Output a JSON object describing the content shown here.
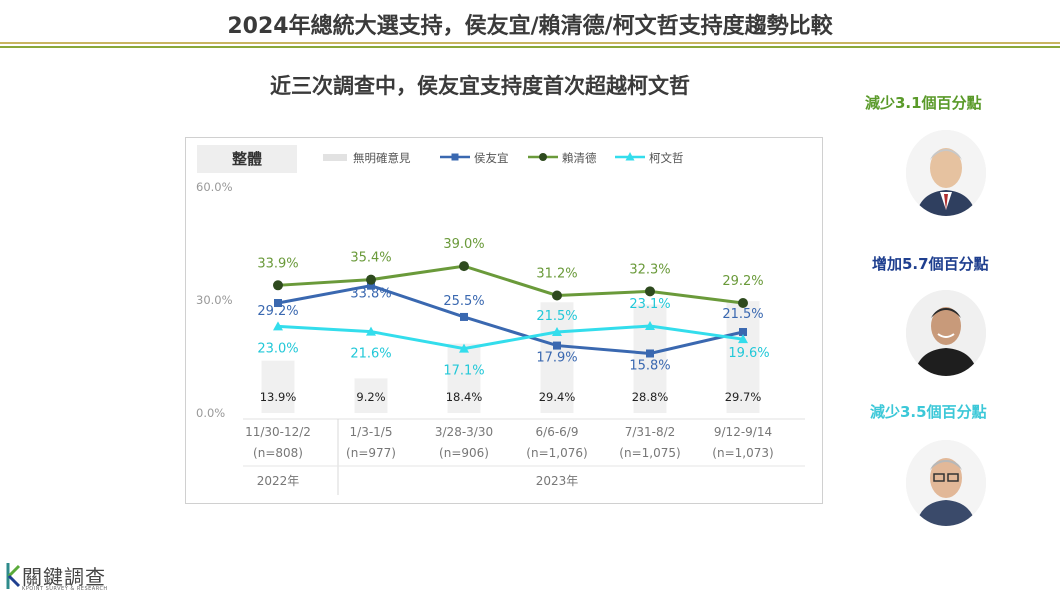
{
  "page": {
    "title": "2024年總統大選支持，侯友宜/賴清德/柯文哲支持度趨勢比較",
    "subtitle": "近三次調查中，侯友宜支持度首次超越柯文哲"
  },
  "side_notes": [
    {
      "text": "減少3.1個百分點",
      "color": "#5a9a2a"
    },
    {
      "text": "增加5.7個百分點",
      "color": "#1f3f8f"
    },
    {
      "text": "減少3.5個百分點",
      "color": "#3cc8d8"
    }
  ],
  "logo": {
    "name": "關鍵調查",
    "sub": "KPOINT SURVEY & RESEARCH"
  },
  "chart_data": {
    "type": "line",
    "panel_label": "整體",
    "categories": [
      "11/30-12/2",
      "1/3-1/5",
      "3/28-3/30",
      "6/6-6/9",
      "7/31-8/2",
      "9/12-9/14"
    ],
    "sample_sizes": [
      "(n=808)",
      "(n=977)",
      "(n=906)",
      "(n=1,076)",
      "(n=1,075)",
      "(n=1,073)"
    ],
    "years": [
      {
        "label": "2022年",
        "span": [
          0,
          0
        ]
      },
      {
        "label": "2023年",
        "span": [
          1,
          5
        ]
      }
    ],
    "ylim": [
      0,
      60
    ],
    "yticks": [
      "0.0%",
      "30.0%",
      "60.0%"
    ],
    "legend_position": "top",
    "series": [
      {
        "name": "無明確意見",
        "kind": "bar",
        "color": "#f0f0f0",
        "values": [
          13.9,
          9.2,
          18.4,
          29.4,
          28.8,
          29.7
        ],
        "labels": [
          "13.9%",
          "9.2%",
          "18.4%",
          "29.4%",
          "28.8%",
          "29.7%"
        ]
      },
      {
        "name": "侯友宜",
        "kind": "line",
        "marker": "square",
        "color": "#3a68b0",
        "values": [
          29.2,
          33.8,
          25.5,
          17.9,
          15.8,
          21.5
        ],
        "labels": [
          "29.2%",
          "33.8%",
          "25.5%",
          "17.9%",
          "15.8%",
          "21.5%"
        ]
      },
      {
        "name": "賴清德",
        "kind": "line",
        "marker": "circle",
        "color": "#6a9a3a",
        "values": [
          33.9,
          35.4,
          39.0,
          31.2,
          32.3,
          29.2
        ],
        "labels": [
          "33.9%",
          "35.4%",
          "39.0%",
          "31.2%",
          "32.3%",
          "29.2%"
        ]
      },
      {
        "name": "柯文哲",
        "kind": "line",
        "marker": "triangle",
        "color": "#33ddec",
        "values": [
          23.0,
          21.6,
          17.1,
          21.5,
          23.1,
          19.6
        ],
        "labels": [
          "23.0%",
          "21.6%",
          "17.1%",
          "21.5%",
          "23.1%",
          "19.6%"
        ]
      }
    ]
  }
}
